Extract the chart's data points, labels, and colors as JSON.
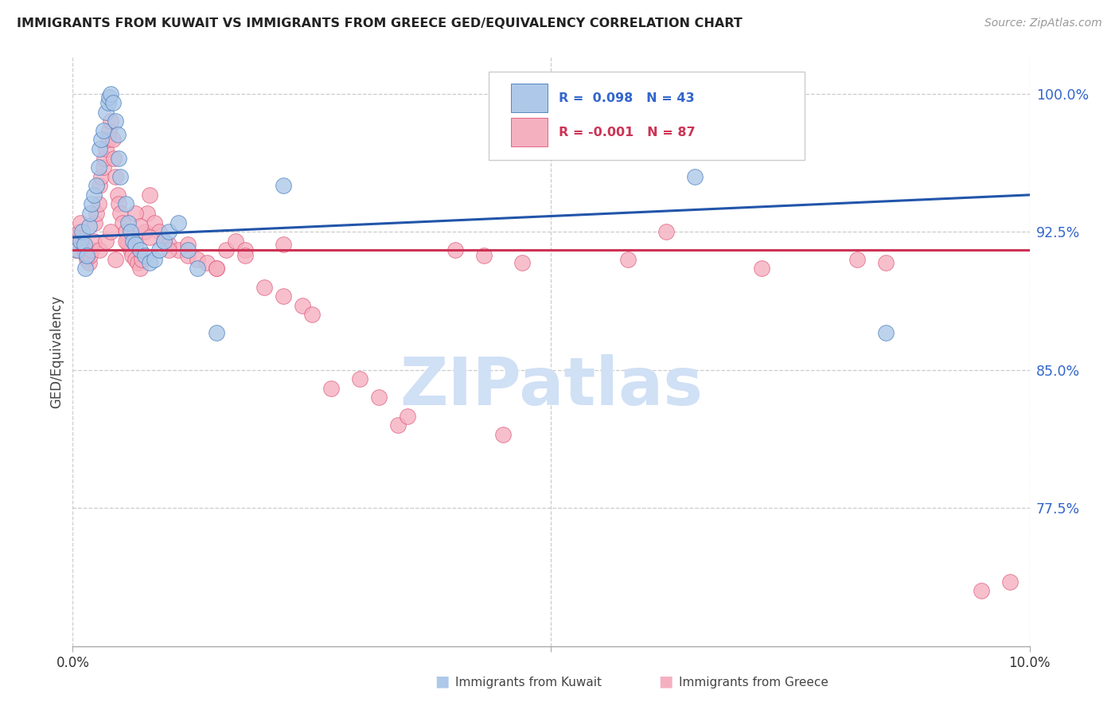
{
  "title": "IMMIGRANTS FROM KUWAIT VS IMMIGRANTS FROM GREECE GED/EQUIVALENCY CORRELATION CHART",
  "source": "Source: ZipAtlas.com",
  "ylabel": "GED/Equivalency",
  "yticks": [
    100.0,
    92.5,
    85.0,
    77.5
  ],
  "ytick_labels": [
    "100.0%",
    "92.5%",
    "85.0%",
    "77.5%"
  ],
  "xmin": 0.0,
  "xmax": 10.0,
  "ymin": 70.0,
  "ymax": 102.0,
  "legend_label_blue": "Immigrants from Kuwait",
  "legend_label_pink": "Immigrants from Greece",
  "blue_fill": "#adc8e8",
  "pink_fill": "#f5b0c0",
  "blue_edge": "#4477bb",
  "pink_edge": "#dd5577",
  "blue_line": "#2255aa",
  "pink_line": "#cc3355",
  "watermark": "ZIPatlas",
  "watermark_color": "#d0e0f5",
  "background_color": "#ffffff",
  "blue_trend_x0": 0.0,
  "blue_trend_y0": 92.2,
  "blue_trend_x1": 10.0,
  "blue_trend_y1": 94.5,
  "pink_trend_x0": 0.0,
  "pink_trend_y0": 91.5,
  "pink_trend_x1": 10.0,
  "pink_trend_y1": 91.5,
  "kuwait_x": [
    0.05,
    0.08,
    0.1,
    0.12,
    0.13,
    0.15,
    0.17,
    0.18,
    0.2,
    0.22,
    0.25,
    0.27,
    0.28,
    0.3,
    0.32,
    0.35,
    0.37,
    0.38,
    0.4,
    0.42,
    0.45,
    0.47,
    0.48,
    0.5,
    0.55,
    0.58,
    0.6,
    0.63,
    0.65,
    0.7,
    0.75,
    0.8,
    0.85,
    0.9,
    0.95,
    1.0,
    1.1,
    1.2,
    1.3,
    1.5,
    2.2,
    6.5,
    8.5
  ],
  "kuwait_y": [
    91.5,
    92.0,
    92.5,
    91.8,
    90.5,
    91.2,
    92.8,
    93.5,
    94.0,
    94.5,
    95.0,
    96.0,
    97.0,
    97.5,
    98.0,
    99.0,
    99.5,
    99.8,
    100.0,
    99.5,
    98.5,
    97.8,
    96.5,
    95.5,
    94.0,
    93.0,
    92.5,
    92.0,
    91.8,
    91.5,
    91.2,
    90.8,
    91.0,
    91.5,
    92.0,
    92.5,
    93.0,
    91.5,
    90.5,
    87.0,
    95.0,
    95.5,
    87.0
  ],
  "greece_x": [
    0.03,
    0.05,
    0.07,
    0.08,
    0.1,
    0.12,
    0.13,
    0.15,
    0.17,
    0.18,
    0.2,
    0.22,
    0.23,
    0.25,
    0.27,
    0.28,
    0.3,
    0.32,
    0.33,
    0.35,
    0.37,
    0.38,
    0.4,
    0.42,
    0.43,
    0.45,
    0.47,
    0.48,
    0.5,
    0.52,
    0.55,
    0.57,
    0.58,
    0.6,
    0.62,
    0.65,
    0.68,
    0.7,
    0.72,
    0.75,
    0.78,
    0.8,
    0.85,
    0.9,
    0.95,
    1.0,
    1.1,
    1.2,
    1.3,
    1.4,
    1.5,
    1.6,
    1.7,
    1.8,
    2.0,
    2.2,
    2.4,
    2.5,
    2.7,
    3.0,
    3.2,
    3.4,
    4.0,
    4.3,
    4.7,
    5.8,
    6.2,
    7.2,
    8.2,
    8.5,
    9.8,
    0.28,
    0.35,
    0.4,
    0.45,
    0.55,
    0.65,
    0.7,
    0.8,
    1.0,
    1.2,
    1.5,
    1.8,
    2.2,
    3.5,
    4.5,
    9.5
  ],
  "greece_y": [
    91.5,
    92.2,
    92.5,
    93.0,
    91.8,
    91.5,
    91.3,
    91.0,
    90.8,
    91.2,
    91.5,
    92.0,
    93.0,
    93.5,
    94.0,
    95.0,
    95.5,
    96.0,
    96.5,
    97.0,
    97.5,
    98.0,
    98.5,
    97.5,
    96.5,
    95.5,
    94.5,
    94.0,
    93.5,
    93.0,
    92.5,
    92.0,
    91.8,
    91.5,
    91.2,
    91.0,
    90.8,
    90.5,
    91.0,
    92.5,
    93.5,
    94.5,
    93.0,
    92.5,
    92.0,
    91.8,
    91.5,
    91.2,
    91.0,
    90.8,
    90.5,
    91.5,
    92.0,
    91.5,
    89.5,
    89.0,
    88.5,
    88.0,
    84.0,
    84.5,
    83.5,
    82.0,
    91.5,
    91.2,
    90.8,
    91.0,
    92.5,
    90.5,
    91.0,
    90.8,
    73.5,
    91.5,
    92.0,
    92.5,
    91.0,
    92.0,
    93.5,
    92.8,
    92.2,
    91.5,
    91.8,
    90.5,
    91.2,
    91.8,
    82.5,
    81.5,
    73.0
  ]
}
